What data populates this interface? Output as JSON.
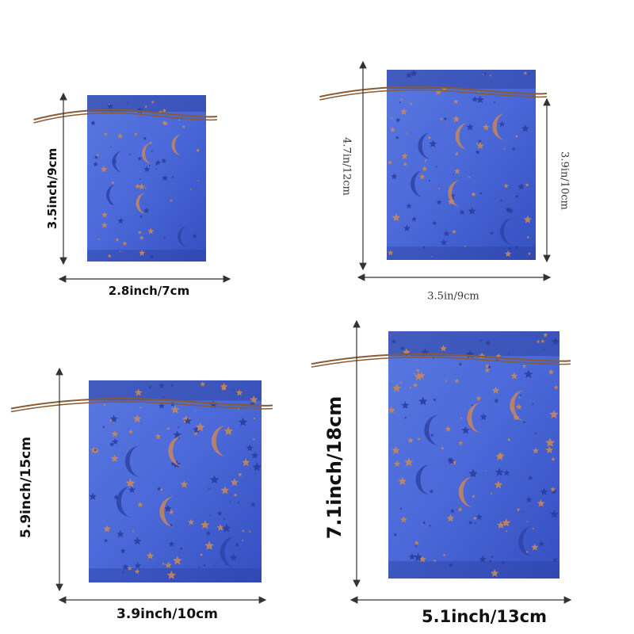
{
  "colors": {
    "bag": "#3d5fd0",
    "bag_dark": "#2a3f9e",
    "foil": "#c8865a",
    "string": "#8a5a33"
  },
  "bags": [
    {
      "height_label": "3.5inch/9cm",
      "width_label": "2.8inch/7cm"
    },
    {
      "height_label": "4.7in/12cm",
      "body_label": "3.9in/10cm",
      "width_label": "3.5in/9cm"
    },
    {
      "height_label": "5.9inch/15cm",
      "width_label": "3.9inch/10cm"
    },
    {
      "height_label": "7.1inch/18cm",
      "width_label": "5.1inch/13cm"
    }
  ]
}
